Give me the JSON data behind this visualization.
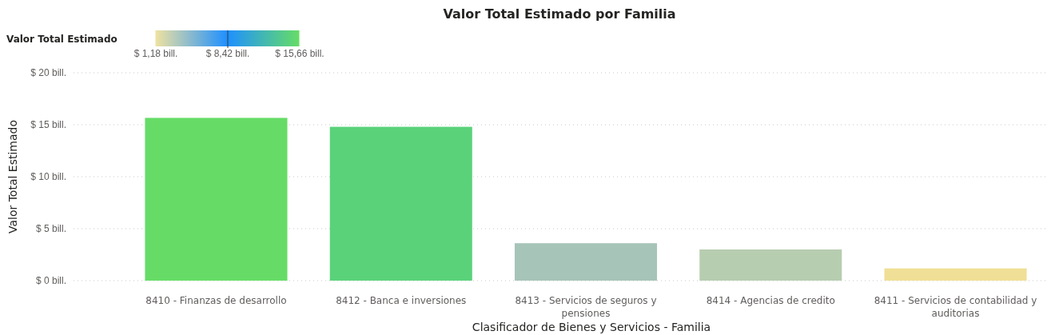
{
  "chart_data": {
    "type": "bar",
    "title": "Valor Total Estimado por Familia",
    "xlabel": "Clasificador de Bienes y Servicios - Familia",
    "ylabel": "Valor Total Estimado",
    "clabel": "Valor Total Estimado",
    "categories": [
      "8410 - Finanzas de desarrollo",
      "8412 - Banca e inversiones",
      "8413 - Servicios de seguros y pensiones",
      "8414 - Agencias de credito",
      "8411 - Servicios de contabilidad y auditorias"
    ],
    "values": [
      15.66,
      14.8,
      3.6,
      3.0,
      1.18
    ],
    "colors": [
      "#66dc66",
      "#5ad27a",
      "#a7c4b8",
      "#b7cdb0",
      "#f0df96"
    ],
    "ylim": [
      0,
      20
    ],
    "yticks": [
      {
        "value": 0,
        "label": "$ 0 bill."
      },
      {
        "value": 5,
        "label": "$ 5 bill."
      },
      {
        "value": 10,
        "label": "$ 10 bill."
      },
      {
        "value": 15,
        "label": "$ 15 bill."
      },
      {
        "value": 20,
        "label": "$ 20 bill."
      }
    ],
    "clim": [
      1.18,
      15.66
    ],
    "cticks": [
      {
        "value": 1.18,
        "label": "$ 1,18 bill."
      },
      {
        "value": 8.42,
        "label": "$ 8,42 bill."
      },
      {
        "value": 15.66,
        "label": "$ 15,66 bill."
      }
    ],
    "grid": "y"
  }
}
